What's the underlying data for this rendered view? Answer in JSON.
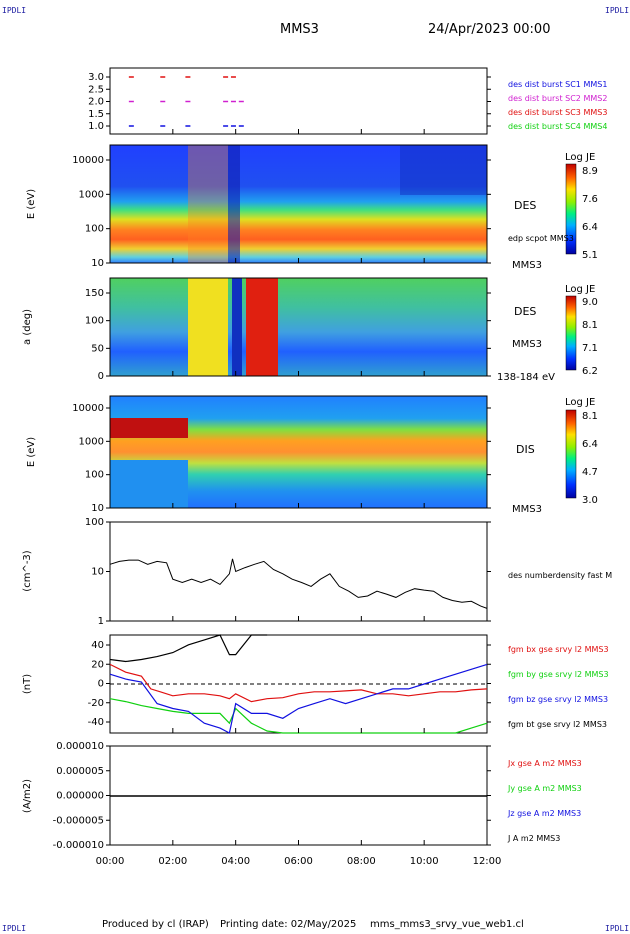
{
  "corners": {
    "tl": "IPDLI",
    "tr": "IPDLI",
    "bl": "IPDLI",
    "br": "IPDLI"
  },
  "header": {
    "spacecraft": "MMS3",
    "date": "24/Apr/2023 00:00"
  },
  "footer": {
    "produced": "Produced by cl (IRAP)",
    "printing": "Printing date: 02/May/2025",
    "script": "mms_mms3_srvy_vue_web1.cl"
  },
  "colors": {
    "red": "#e01010",
    "magenta": "#d020d0",
    "blue": "#1010e0",
    "green": "#10d010",
    "black": "#000000"
  },
  "chart_data": [
    {
      "type": "scatter",
      "panel": "burst-availability",
      "yticks": [
        "3.0",
        "2.5",
        "2.0",
        "1.5",
        "1.0"
      ],
      "ylim": [
        0.8,
        3.2
      ],
      "legend": [
        {
          "name": "des dist burst SC1 MMS1",
          "color": "#1010e0"
        },
        {
          "name": "des dist burst SC2 MMS2",
          "color": "#d020d0"
        },
        {
          "name": "des dist burst SC3 MMS3",
          "color": "#e01010"
        },
        {
          "name": "des dist burst SC4 MMS4",
          "color": "#10d010"
        }
      ],
      "series": [
        {
          "name": "des dist burst SC3 MMS3",
          "y": 3.0,
          "x": [
            0.6,
            1.6,
            2.4,
            3.6,
            3.85
          ]
        },
        {
          "name": "des dist burst SC2 MMS2",
          "y": 2.0,
          "x": [
            0.6,
            1.6,
            2.4,
            3.6,
            3.85,
            4.1
          ]
        },
        {
          "name": "des dist burst SC1 MMS1",
          "y": 1.0,
          "x": [
            0.6,
            1.6,
            2.4,
            3.6,
            3.85,
            4.1
          ]
        }
      ]
    },
    {
      "type": "heatmap",
      "panel": "des-energy",
      "ylabel": "E (eV)",
      "yticks": [
        "10000",
        "1000",
        "100",
        "10"
      ],
      "yscale": "log",
      "label": "DES",
      "sublabel": "MMS3",
      "overlay": "edp scpot MMS3",
      "colorbar": {
        "title": "Log JE",
        "ticks": [
          "8.9",
          "7.6",
          "6.4",
          "5.1"
        ]
      }
    },
    {
      "type": "heatmap",
      "panel": "des-pitch-angle",
      "ylabel": "a (deg)",
      "yticks": [
        "150",
        "100",
        "50",
        "0"
      ],
      "label": "DES",
      "sublabel": "MMS3",
      "energy_range": "138-184 eV",
      "colorbar": {
        "title": "Log JE",
        "ticks": [
          "9.0",
          "8.1",
          "7.1",
          "6.2"
        ]
      }
    },
    {
      "type": "heatmap",
      "panel": "dis-energy",
      "ylabel": "E (eV)",
      "yticks": [
        "10000",
        "1000",
        "100",
        "10"
      ],
      "yscale": "log",
      "label": "DIS",
      "sublabel": "MMS3",
      "colorbar": {
        "title": "Log JE",
        "ticks": [
          "8.1",
          "6.4",
          "4.7",
          "3.0"
        ]
      }
    },
    {
      "type": "line",
      "panel": "density",
      "ylabel": "(cm^-3)",
      "yscale": "log",
      "yticks": [
        "100",
        "10",
        "1"
      ],
      "ylim": [
        1,
        100
      ],
      "series": [
        {
          "name": "des numberdensity fast M",
          "color": "#000000",
          "x": [
            0,
            0.3,
            0.6,
            0.9,
            1.2,
            1.5,
            1.8,
            2.0,
            2.3,
            2.6,
            2.9,
            3.2,
            3.5,
            3.8,
            3.9,
            4.0,
            4.3,
            4.6,
            4.9,
            5.2,
            5.5,
            5.8,
            6.1,
            6.4,
            6.7,
            7.0,
            7.3,
            7.6,
            7.9,
            8.2,
            8.5,
            8.8,
            9.1,
            9.4,
            9.7,
            10.0,
            10.3,
            10.6,
            10.9,
            11.2,
            11.5,
            11.8,
            12.0
          ],
          "y": [
            14,
            16,
            17,
            17,
            14,
            16,
            15,
            7,
            6,
            7,
            6,
            7,
            5.5,
            9,
            18,
            10,
            12,
            14,
            16,
            11,
            9,
            7,
            6,
            5,
            7,
            9,
            5,
            4,
            3,
            3.2,
            4,
            3.5,
            3,
            3.8,
            4.5,
            4.2,
            4,
            3,
            2.6,
            2.4,
            2.5,
            2,
            1.8
          ]
        }
      ]
    },
    {
      "type": "line",
      "panel": "magnetic-field",
      "ylabel": "(nT)",
      "yticks": [
        "40",
        "20",
        "0",
        "-20",
        "-40"
      ],
      "ylim": [
        -50,
        50
      ],
      "series": [
        {
          "name": "fgm bx gse srvy l2 MMS3",
          "color": "#e01010",
          "x": [
            0,
            0.5,
            1.0,
            1.3,
            1.6,
            2.0,
            2.5,
            3.0,
            3.5,
            3.8,
            4.0,
            4.5,
            5.0,
            5.5,
            6.0,
            6.5,
            7.0,
            7.5,
            8.0,
            8.5,
            9.0,
            9.5,
            10.0,
            10.5,
            11.0,
            11.5,
            12.0
          ],
          "y": [
            20,
            12,
            8,
            -5,
            -8,
            -12,
            -10,
            -10,
            -12,
            -15,
            -10,
            -18,
            -15,
            -14,
            -10,
            -8,
            -8,
            -7,
            -6,
            -10,
            -10,
            -12,
            -10,
            -8,
            -8,
            -6,
            -5
          ]
        },
        {
          "name": "fgm by gse srvy l2 MMS3",
          "color": "#10d010",
          "x": [
            0,
            0.5,
            1.0,
            1.5,
            2.0,
            2.5,
            3.0,
            3.5,
            3.8,
            4.0,
            4.5,
            5.0,
            5.5,
            6.0,
            7.0,
            8.0,
            9.0,
            10.0,
            11.0,
            11.5,
            12.0
          ],
          "y": [
            -15,
            -18,
            -22,
            -25,
            -28,
            -30,
            -30,
            -30,
            -40,
            -25,
            -40,
            -48,
            -50,
            -50,
            -50,
            -50,
            -50,
            -50,
            -50,
            -45,
            -40
          ]
        },
        {
          "name": "fgm bz gse srvy l2 MMS3",
          "color": "#1010e0",
          "x": [
            0,
            0.5,
            1.0,
            1.5,
            2.0,
            2.5,
            3.0,
            3.5,
            3.8,
            4.0,
            4.5,
            5.0,
            5.5,
            6.0,
            6.5,
            7.0,
            7.5,
            8.0,
            8.5,
            9.0,
            9.5,
            10.0,
            10.5,
            11.0,
            11.5,
            12.0
          ],
          "y": [
            10,
            5,
            2,
            -20,
            -25,
            -28,
            -40,
            -45,
            -50,
            -20,
            -30,
            -30,
            -35,
            -25,
            -20,
            -15,
            -20,
            -15,
            -10,
            -5,
            -5,
            0,
            5,
            10,
            15,
            20
          ]
        },
        {
          "name": "fgm bt gse srvy l2 MMS3",
          "color": "#000000",
          "x": [
            0,
            0.5,
            1.0,
            1.5,
            2.0,
            2.5,
            3.0,
            3.5,
            3.8,
            4.0,
            4.5,
            5.0
          ],
          "y": [
            25,
            23,
            25,
            28,
            32,
            40,
            45,
            50,
            30,
            30,
            50,
            50
          ]
        }
      ]
    },
    {
      "type": "line",
      "panel": "current-density",
      "ylabel": "(A/m2)",
      "yticks": [
        "0.000010",
        "0.000005",
        "0.000000",
        "-0.000005",
        "-0.000010"
      ],
      "ylim": [
        -1e-05,
        1e-05
      ],
      "series": [
        {
          "name": "Jx gse A m2 MMS3",
          "color": "#e01010"
        },
        {
          "name": "Jy gse A m2 MMS3",
          "color": "#10d010"
        },
        {
          "name": "Jz gse A m2 MMS3",
          "color": "#1010e0"
        },
        {
          "name": "J A m2 MMS3",
          "color": "#000000"
        }
      ]
    }
  ],
  "xaxis": {
    "ticks": [
      "00:00",
      "02:00",
      "04:00",
      "06:00",
      "08:00",
      "10:00",
      "12:00"
    ],
    "xlim": [
      0,
      12
    ]
  }
}
